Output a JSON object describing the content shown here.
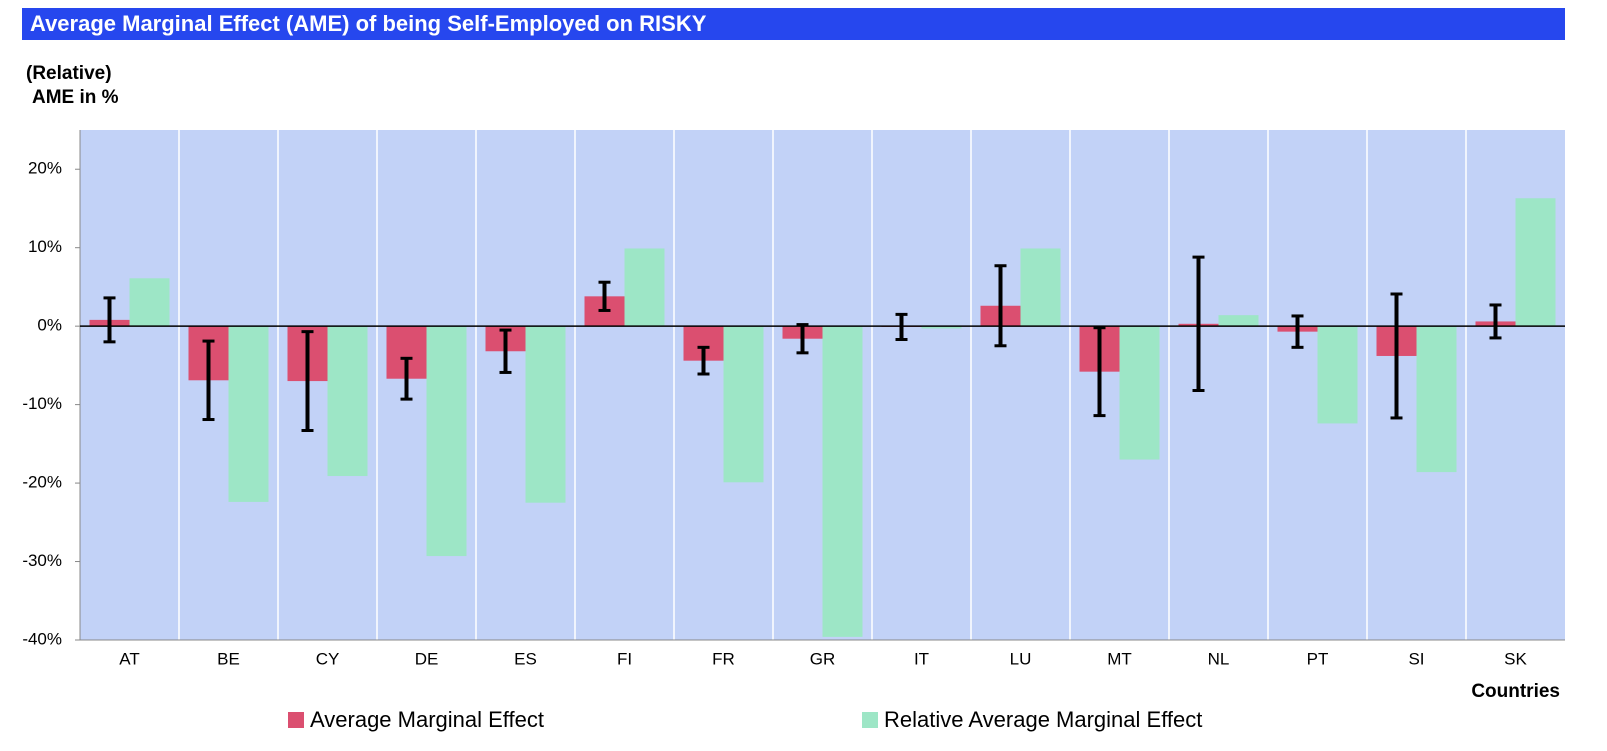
{
  "chart_data": {
    "type": "bar",
    "title": "Average Marginal Effect (AME) of being Self-Employed on RISKY",
    "y_label": [
      "(Relative)",
      "AME in %"
    ],
    "x_label": "Countries",
    "categories": [
      "AT",
      "BE",
      "CY",
      "DE",
      "ES",
      "FI",
      "FR",
      "GR",
      "IT",
      "LU",
      "MT",
      "NL",
      "PT",
      "SI",
      "SK"
    ],
    "series": [
      {
        "name": "Average Marginal Effect",
        "color": "#db4f70",
        "values": [
          0.8,
          -6.9,
          -7.0,
          -6.7,
          -3.2,
          3.8,
          -4.4,
          -1.6,
          -0.1,
          2.6,
          -5.8,
          0.3,
          -0.7,
          -3.8,
          0.6
        ],
        "errors": [
          2.8,
          5.0,
          6.3,
          2.6,
          2.7,
          1.8,
          1.7,
          1.8,
          1.6,
          5.1,
          5.6,
          8.5,
          2.0,
          7.9,
          2.1
        ]
      },
      {
        "name": "Relative Average Marginal Effect",
        "color": "#9de6c6",
        "values": [
          6.1,
          -22.4,
          -19.1,
          -29.3,
          -22.5,
          9.9,
          -19.9,
          -39.6,
          -0.3,
          9.9,
          -17.0,
          1.4,
          -12.4,
          -18.6,
          16.3
        ]
      }
    ],
    "ylim": [
      -40,
      25
    ],
    "yticks": [
      {
        "value": -40,
        "label": "-40%"
      },
      {
        "value": -30,
        "label": "-30%"
      },
      {
        "value": -20,
        "label": "-20%"
      },
      {
        "value": -10,
        "label": "-10%"
      },
      {
        "value": 0,
        "label": "0%"
      },
      {
        "value": 10,
        "label": "10%"
      },
      {
        "value": 20,
        "label": "20%"
      }
    ],
    "grid": false,
    "legend": "bottom"
  }
}
